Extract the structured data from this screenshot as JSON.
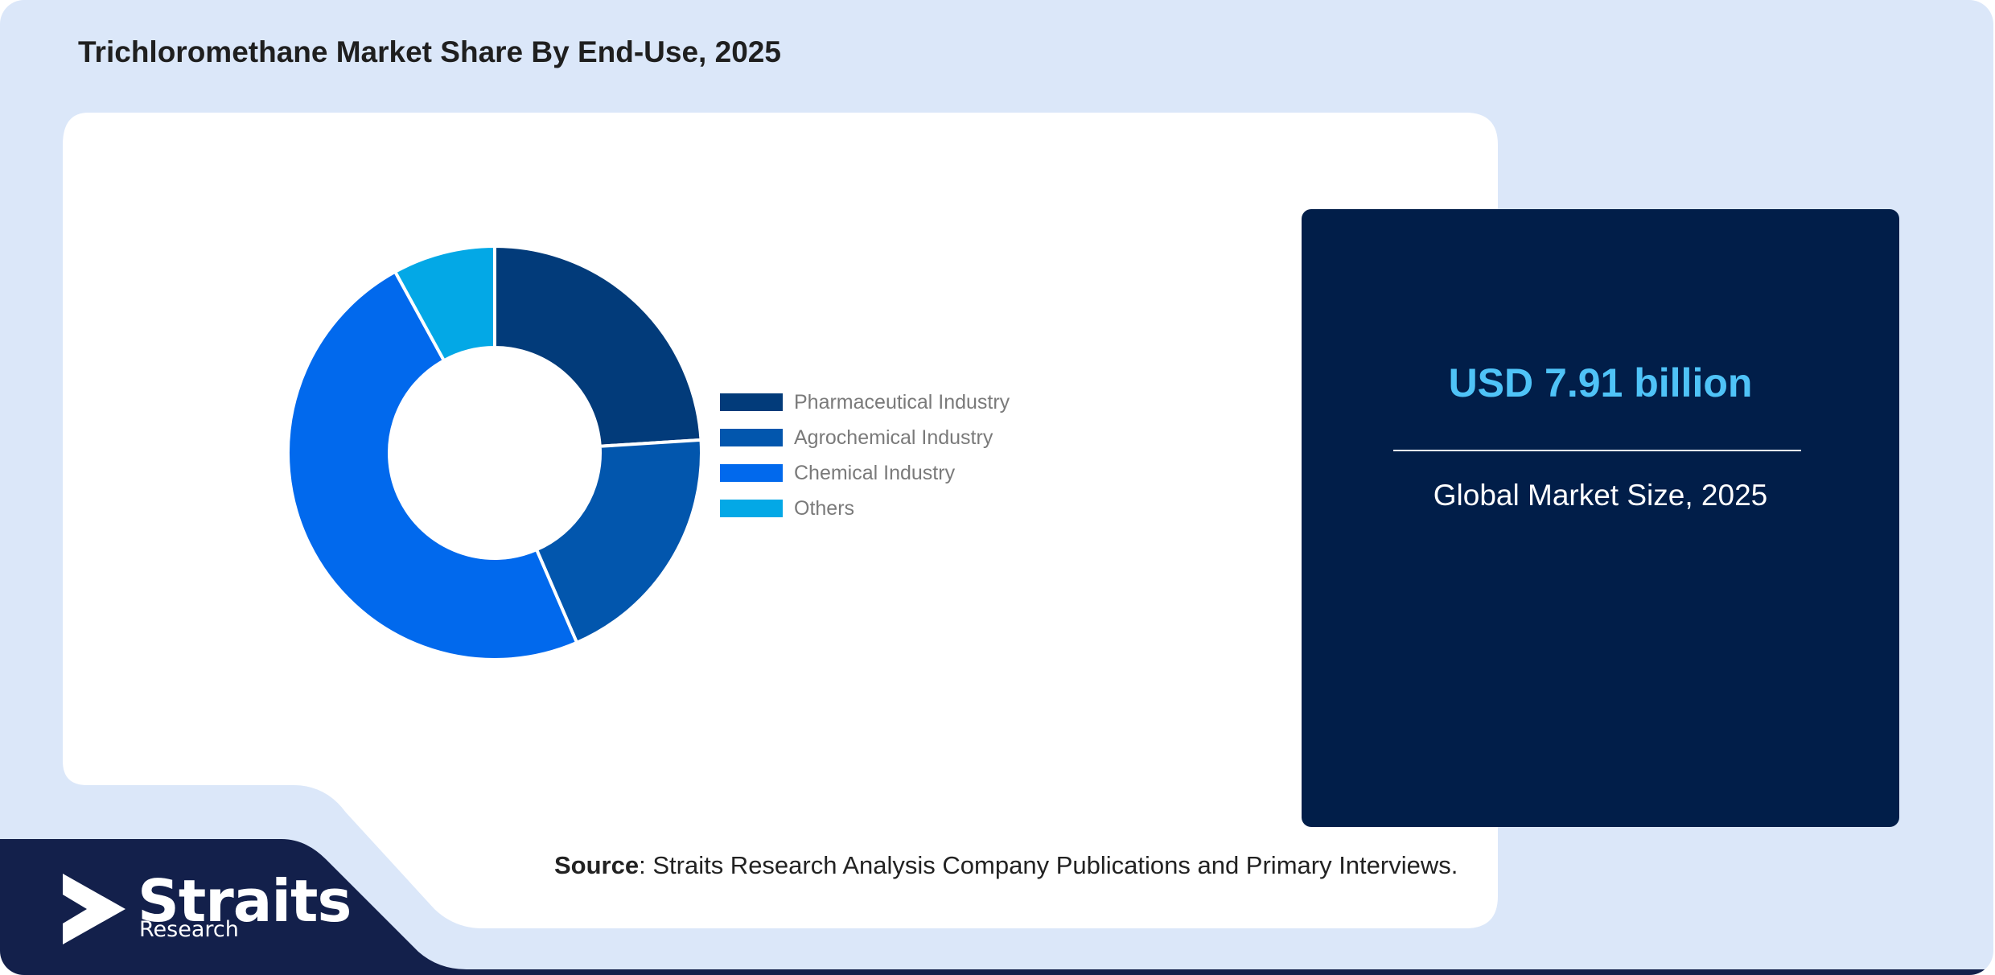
{
  "header": {
    "title": "Trichloromethane Market Share By End-Use, 2025"
  },
  "chart_data": {
    "type": "pie",
    "subtype": "donut",
    "title": "Trichloromethane Market Share By End-Use, 2025",
    "categories": [
      "Pharmaceutical Industry",
      "Agrochemical Industry",
      "Chemical Industry",
      "Others"
    ],
    "values": [
      24.0,
      19.5,
      48.5,
      8.0
    ],
    "colors": [
      "#023b7a",
      "#0256ad",
      "#0169ed",
      "#03a8e6"
    ],
    "legend_position": "right"
  },
  "stat_card": {
    "value": "USD 7.91 billion",
    "caption": "Global Market Size, 2025"
  },
  "footer": {
    "source_label": "Source",
    "source_text": ": Straits Research Analysis Company Publications and Primary Interviews."
  },
  "brand": {
    "name": "Straits",
    "subname": "Research",
    "colors": {
      "dark_navy": "#13204b",
      "card_navy": "#011e49",
      "accent_text": "#4fc3f7",
      "background": "#dbe7f9"
    }
  }
}
